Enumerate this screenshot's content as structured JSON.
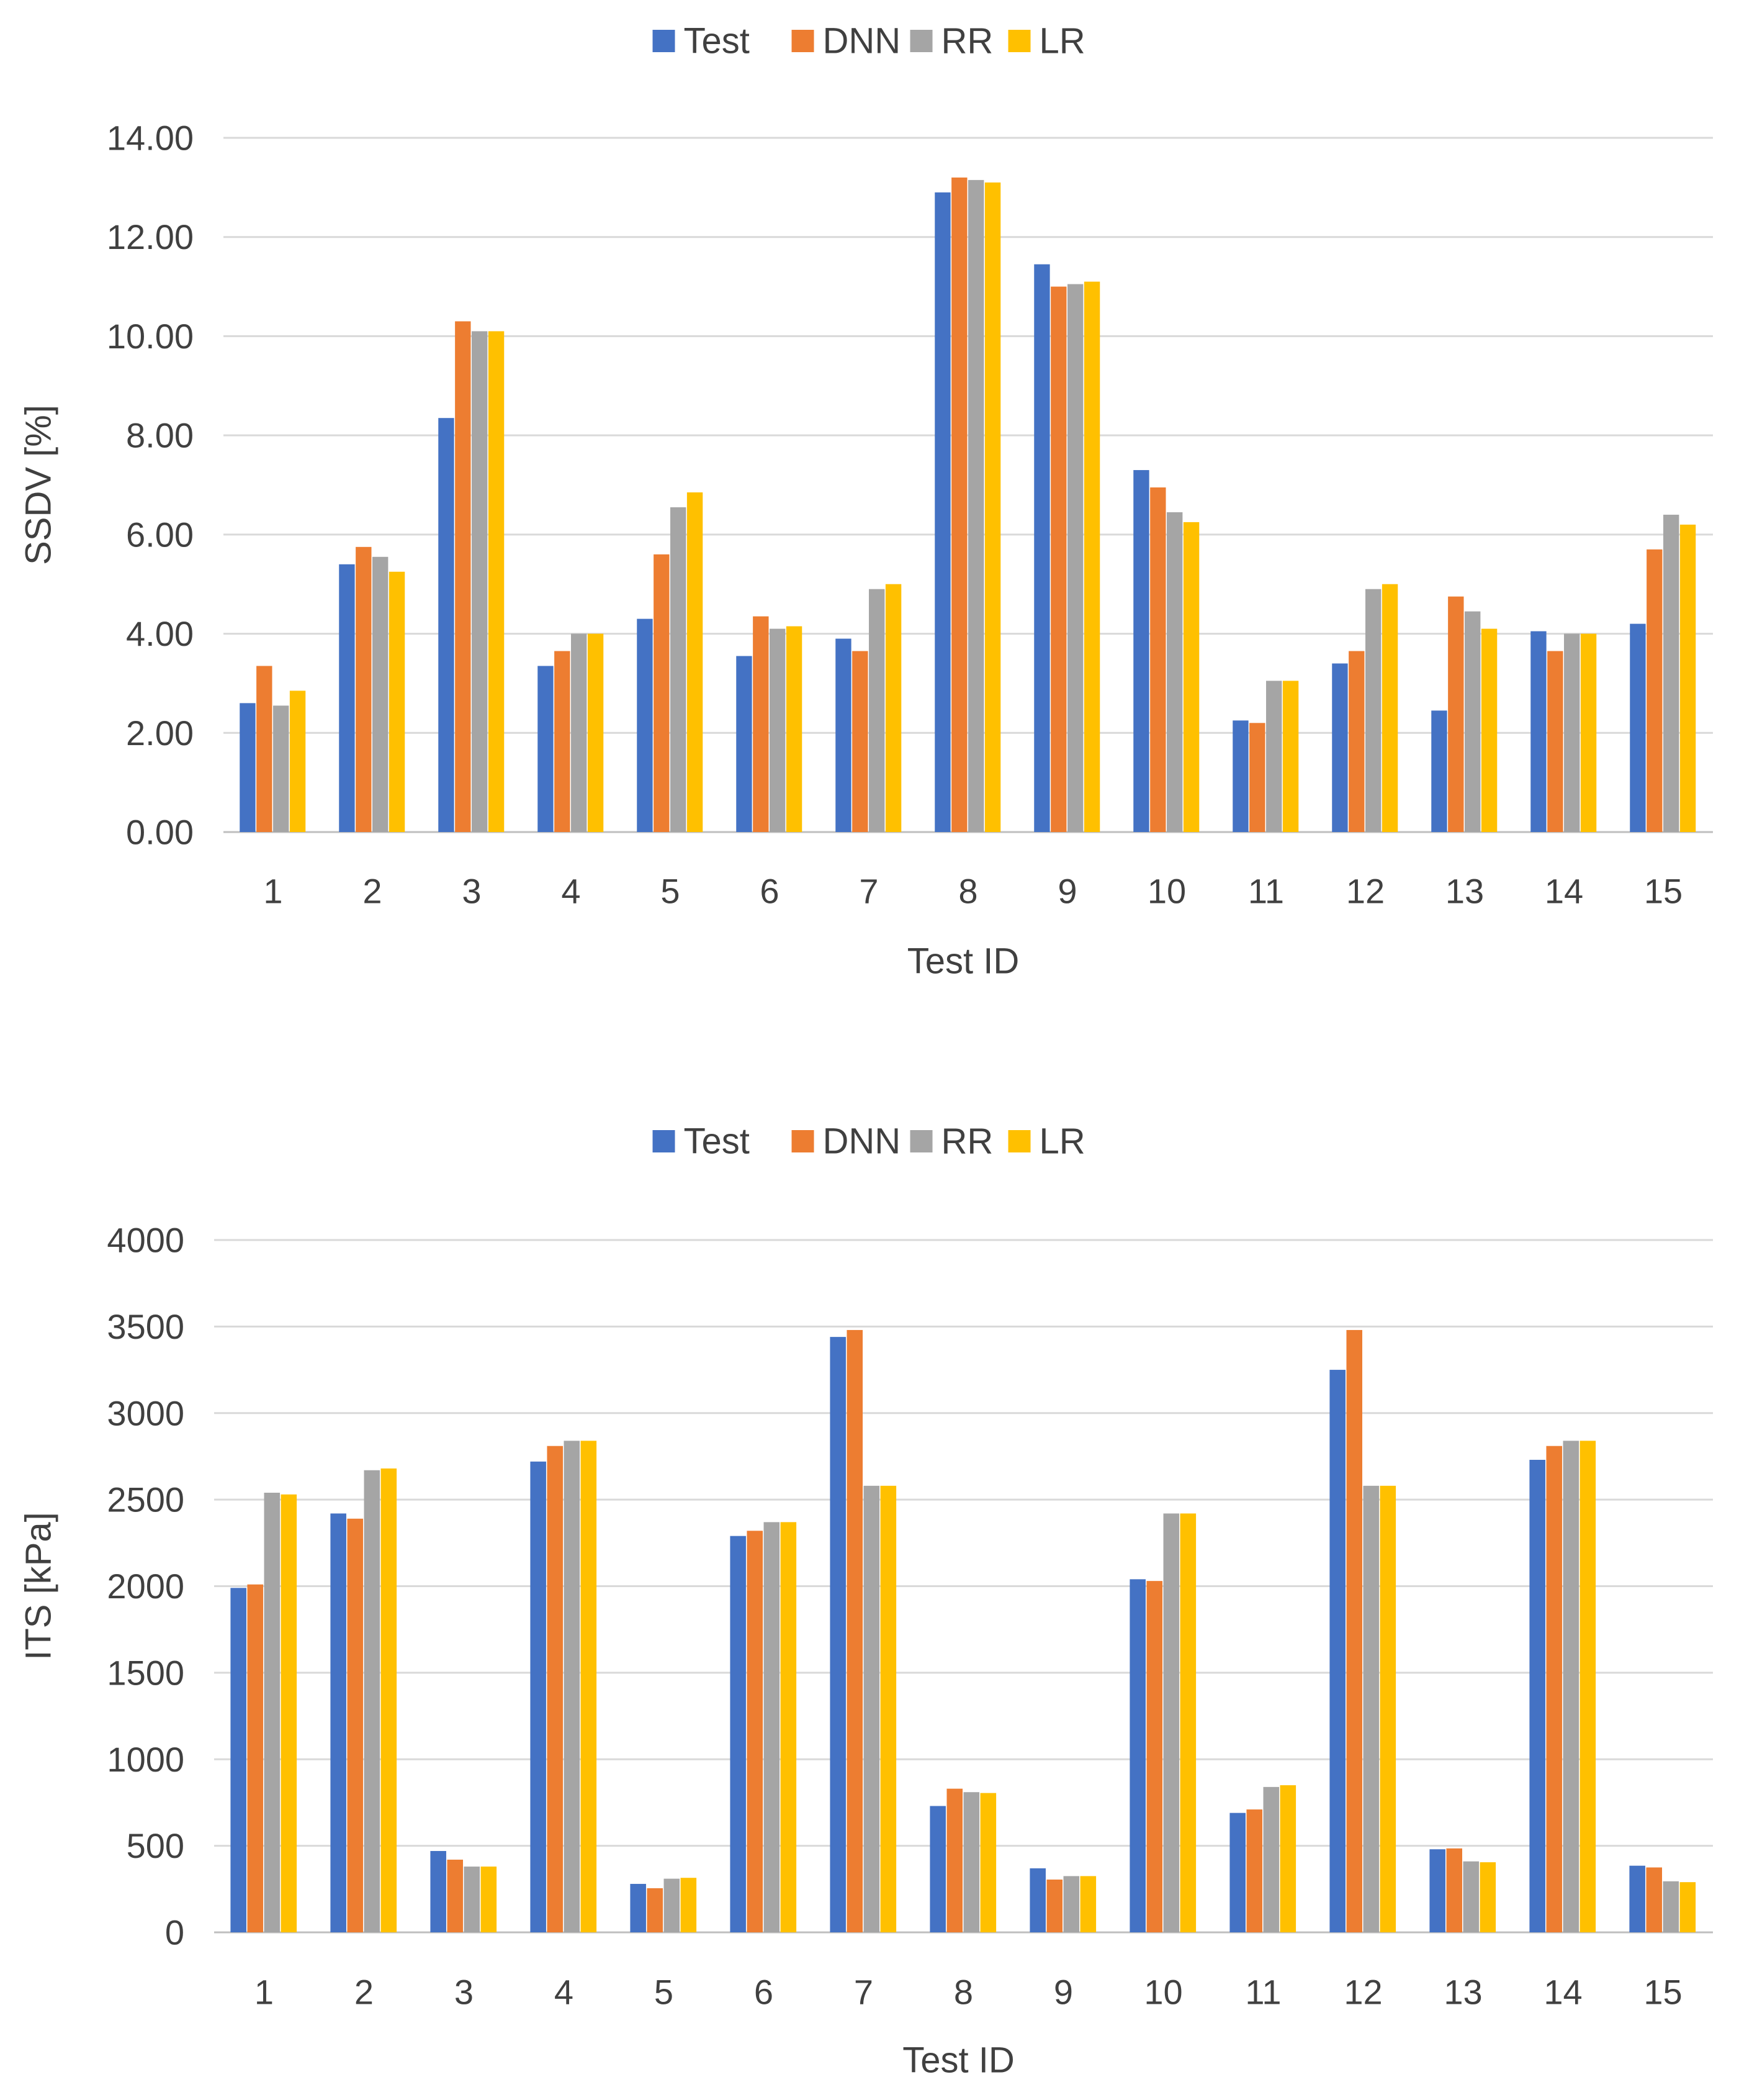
{
  "chart_data": [
    {
      "type": "bar",
      "title": "",
      "xlabel": "Test ID",
      "ylabel": "SSDV [%]",
      "ylim": [
        0,
        14
      ],
      "ytick_step": 2,
      "ytick_labels": [
        "0.00",
        "2.00",
        "4.00",
        "6.00",
        "8.00",
        "10.00",
        "12.00",
        "14.00"
      ],
      "grid": true,
      "legend_position": "top-center",
      "categories": [
        "1",
        "2",
        "3",
        "4",
        "5",
        "6",
        "7",
        "8",
        "9",
        "10",
        "11",
        "12",
        "13",
        "14",
        "15"
      ],
      "series": [
        {
          "name": "Test",
          "color": "#4472C4",
          "values": [
            2.6,
            5.4,
            8.35,
            3.35,
            4.3,
            3.55,
            3.9,
            12.9,
            11.45,
            7.3,
            2.25,
            3.4,
            2.45,
            4.05,
            4.2
          ]
        },
        {
          "name": "DNN",
          "color": "#ED7D31",
          "values": [
            3.35,
            5.75,
            10.3,
            3.65,
            5.6,
            4.35,
            3.65,
            13.2,
            11.0,
            6.95,
            2.2,
            3.65,
            4.75,
            3.65,
            5.7
          ]
        },
        {
          "name": "RR",
          "color": "#A5A5A5",
          "values": [
            2.55,
            5.55,
            10.1,
            4.0,
            6.55,
            4.1,
            4.9,
            13.15,
            11.05,
            6.45,
            3.05,
            4.9,
            4.45,
            4.0,
            6.4
          ]
        },
        {
          "name": "LR",
          "color": "#FFC000",
          "values": [
            2.85,
            5.25,
            10.1,
            4.0,
            6.85,
            4.15,
            5.0,
            13.1,
            11.1,
            6.25,
            3.05,
            5.0,
            4.1,
            4.0,
            6.2
          ]
        }
      ]
    },
    {
      "type": "bar",
      "title": "",
      "xlabel": "Test ID",
      "ylabel": "ITS [kPa]",
      "ylim": [
        0,
        4000
      ],
      "ytick_step": 500,
      "ytick_labels": [
        "0",
        "500",
        "1000",
        "1500",
        "2000",
        "2500",
        "3000",
        "3500",
        "4000"
      ],
      "grid": true,
      "legend_position": "top-center",
      "categories": [
        "1",
        "2",
        "3",
        "4",
        "5",
        "6",
        "7",
        "8",
        "9",
        "10",
        "11",
        "12",
        "13",
        "14",
        "15"
      ],
      "series": [
        {
          "name": "Test",
          "color": "#4472C4",
          "values": [
            1990,
            2420,
            470,
            2720,
            280,
            2290,
            3440,
            730,
            370,
            2040,
            690,
            3250,
            480,
            2730,
            385
          ]
        },
        {
          "name": "DNN",
          "color": "#ED7D31",
          "values": [
            2010,
            2390,
            420,
            2810,
            255,
            2320,
            3480,
            830,
            305,
            2030,
            710,
            3480,
            485,
            2810,
            375
          ]
        },
        {
          "name": "RR",
          "color": "#A5A5A5",
          "values": [
            2540,
            2670,
            380,
            2840,
            310,
            2370,
            2580,
            810,
            325,
            2420,
            840,
            2580,
            410,
            2840,
            295
          ]
        },
        {
          "name": "LR",
          "color": "#FFC000",
          "values": [
            2530,
            2680,
            380,
            2840,
            315,
            2370,
            2580,
            805,
            325,
            2420,
            850,
            2580,
            405,
            2840,
            290
          ]
        }
      ]
    }
  ]
}
